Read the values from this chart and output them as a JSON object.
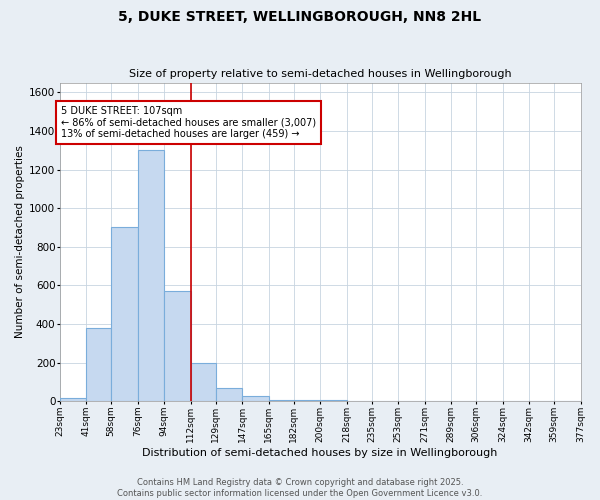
{
  "title": "5, DUKE STREET, WELLINGBOROUGH, NN8 2HL",
  "subtitle": "Size of property relative to semi-detached houses in Wellingborough",
  "xlabel": "Distribution of semi-detached houses by size in Wellingborough",
  "ylabel": "Number of semi-detached properties",
  "bin_edges": [
    23,
    41,
    58,
    76,
    94,
    112,
    129,
    147,
    165,
    182,
    200,
    218,
    235,
    253,
    271,
    289,
    306,
    324,
    342,
    359,
    377
  ],
  "bin_labels": [
    "23sqm",
    "41sqm",
    "58sqm",
    "76sqm",
    "94sqm",
    "112sqm",
    "129sqm",
    "147sqm",
    "165sqm",
    "182sqm",
    "200sqm",
    "218sqm",
    "235sqm",
    "253sqm",
    "271sqm",
    "289sqm",
    "306sqm",
    "324sqm",
    "342sqm",
    "359sqm",
    "377sqm"
  ],
  "values": [
    20,
    380,
    900,
    1300,
    570,
    200,
    70,
    30,
    5,
    5,
    5,
    0,
    0,
    0,
    0,
    0,
    0,
    0,
    0,
    0
  ],
  "bar_color": "#c6d9f0",
  "bar_edge_color": "#7aaddb",
  "vline_x_index": 5,
  "vline_color": "#cc0000",
  "annotation_title": "5 DUKE STREET: 107sqm",
  "annotation_line1": "← 86% of semi-detached houses are smaller (3,007)",
  "annotation_line2": "13% of semi-detached houses are larger (459) →",
  "annotation_box_color": "#cc0000",
  "ylim": [
    0,
    1650
  ],
  "yticks": [
    0,
    200,
    400,
    600,
    800,
    1000,
    1200,
    1400,
    1600
  ],
  "footer_line1": "Contains HM Land Registry data © Crown copyright and database right 2025.",
  "footer_line2": "Contains public sector information licensed under the Open Government Licence v3.0.",
  "fig_bg_color": "#e8eef4",
  "plot_bg_color": "#ffffff",
  "grid_color": "#c8d4e0"
}
